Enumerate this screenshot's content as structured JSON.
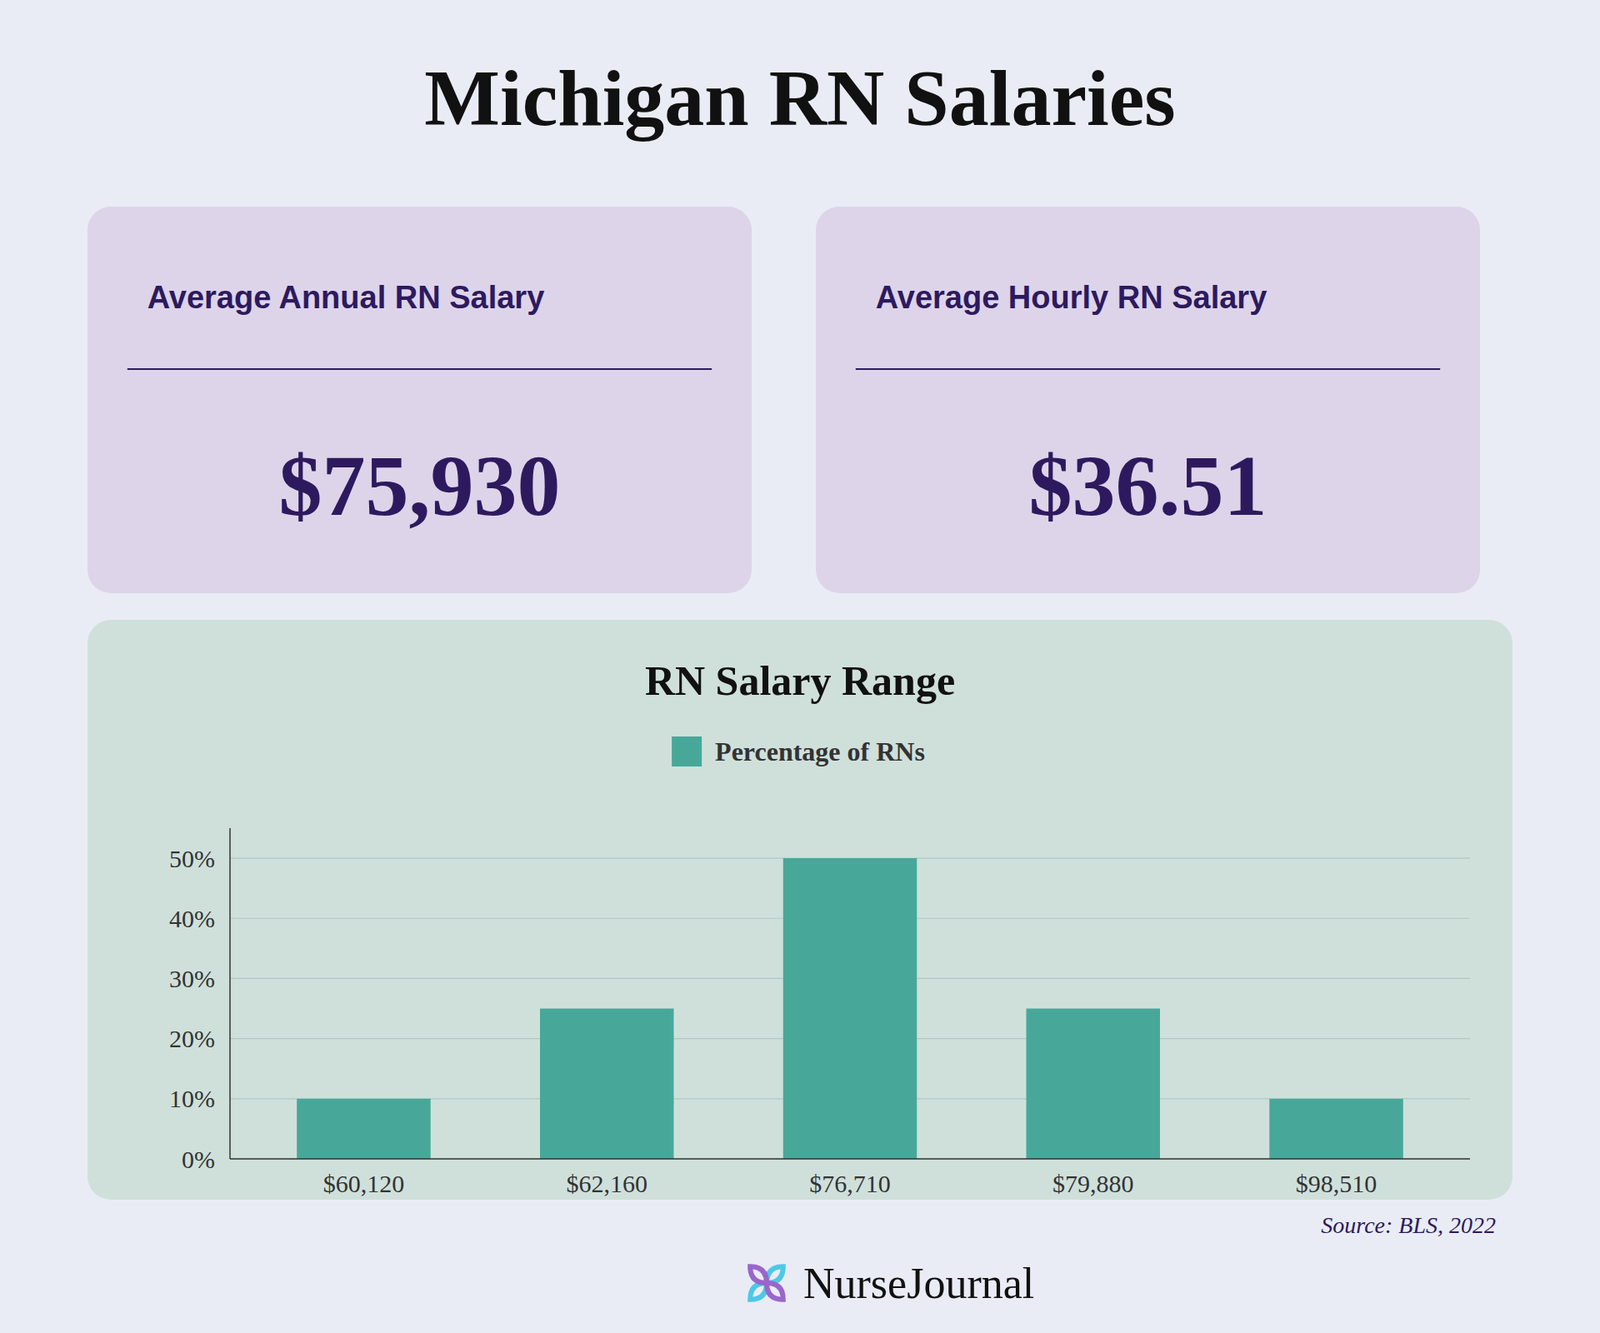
{
  "title": "Michigan RN Salaries",
  "background": "#eaecf5",
  "cards": [
    {
      "label": "Average Annual RN Salary",
      "value": "$75,930",
      "color": "#ddd4ea"
    },
    {
      "label": "Average Hourly RN Salary",
      "value": "$36.51",
      "color": "#ddd4ea"
    }
  ],
  "source": "Source: BLS, 2022",
  "logo_text": "NurseJournal",
  "chart_data": {
    "type": "bar",
    "title": "RN Salary Range",
    "background": "#cfe0db",
    "categories": [
      "$60,120",
      "$62,160",
      "$76,710",
      "$79,880",
      "$98,510"
    ],
    "series": [
      {
        "name": "Percentage of RNs",
        "color": "#47a89a",
        "values": [
          10,
          25,
          50,
          25,
          10
        ]
      }
    ],
    "ylim": [
      0,
      55
    ],
    "yticks": [
      {
        "value": 0,
        "label": "0%"
      },
      {
        "value": 10,
        "label": "10%"
      },
      {
        "value": 20,
        "label": "20%"
      },
      {
        "value": 30,
        "label": "30%"
      },
      {
        "value": 40,
        "label": "40%"
      },
      {
        "value": 50,
        "label": "50%"
      }
    ],
    "grid": true,
    "legend": "top"
  }
}
